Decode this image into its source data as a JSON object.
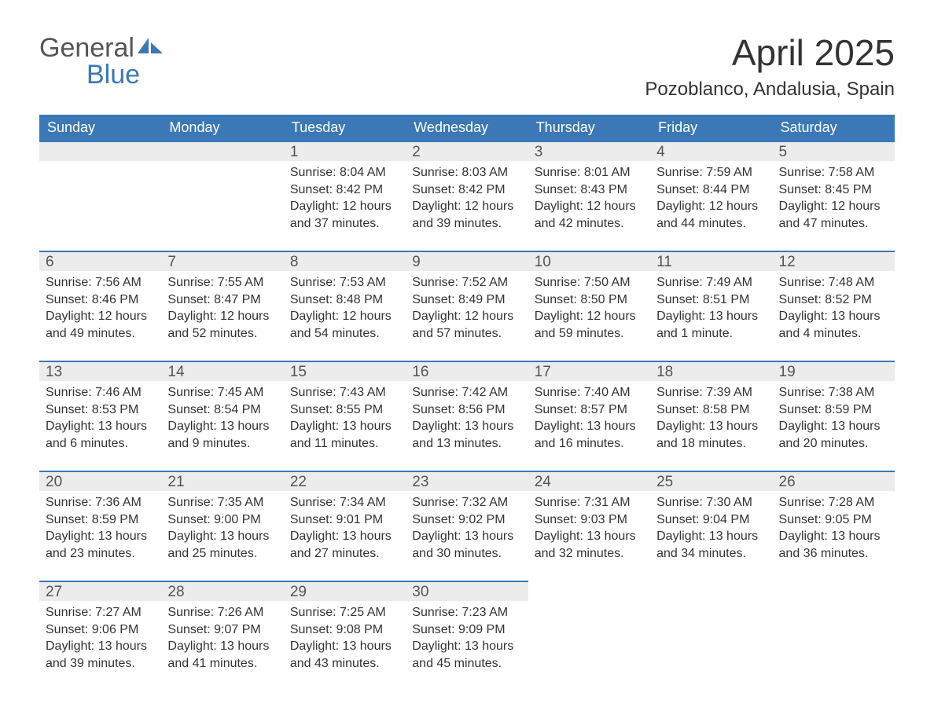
{
  "brand": {
    "top": "General",
    "bottom": "Blue",
    "top_color": "#555555",
    "bottom_color": "#3b78b5"
  },
  "title": "April 2025",
  "location": "Pozoblanco, Andalusia, Spain",
  "colors": {
    "header_bg": "#3b78b5",
    "header_text": "#ffffff",
    "daynum_bg": "#ececec",
    "row_divider": "#3b78b5",
    "body_text": "#333333",
    "page_bg": "#ffffff"
  },
  "weekdays": [
    "Sunday",
    "Monday",
    "Tuesday",
    "Wednesday",
    "Thursday",
    "Friday",
    "Saturday"
  ],
  "labels": {
    "sunrise": "Sunrise:",
    "sunset": "Sunset:",
    "daylight": "Daylight:"
  },
  "weeks": [
    [
      null,
      null,
      {
        "n": "1",
        "sunrise": "8:04 AM",
        "sunset": "8:42 PM",
        "daylight": "12 hours and 37 minutes."
      },
      {
        "n": "2",
        "sunrise": "8:03 AM",
        "sunset": "8:42 PM",
        "daylight": "12 hours and 39 minutes."
      },
      {
        "n": "3",
        "sunrise": "8:01 AM",
        "sunset": "8:43 PM",
        "daylight": "12 hours and 42 minutes."
      },
      {
        "n": "4",
        "sunrise": "7:59 AM",
        "sunset": "8:44 PM",
        "daylight": "12 hours and 44 minutes."
      },
      {
        "n": "5",
        "sunrise": "7:58 AM",
        "sunset": "8:45 PM",
        "daylight": "12 hours and 47 minutes."
      }
    ],
    [
      {
        "n": "6",
        "sunrise": "7:56 AM",
        "sunset": "8:46 PM",
        "daylight": "12 hours and 49 minutes."
      },
      {
        "n": "7",
        "sunrise": "7:55 AM",
        "sunset": "8:47 PM",
        "daylight": "12 hours and 52 minutes."
      },
      {
        "n": "8",
        "sunrise": "7:53 AM",
        "sunset": "8:48 PM",
        "daylight": "12 hours and 54 minutes."
      },
      {
        "n": "9",
        "sunrise": "7:52 AM",
        "sunset": "8:49 PM",
        "daylight": "12 hours and 57 minutes."
      },
      {
        "n": "10",
        "sunrise": "7:50 AM",
        "sunset": "8:50 PM",
        "daylight": "12 hours and 59 minutes."
      },
      {
        "n": "11",
        "sunrise": "7:49 AM",
        "sunset": "8:51 PM",
        "daylight": "13 hours and 1 minute."
      },
      {
        "n": "12",
        "sunrise": "7:48 AM",
        "sunset": "8:52 PM",
        "daylight": "13 hours and 4 minutes."
      }
    ],
    [
      {
        "n": "13",
        "sunrise": "7:46 AM",
        "sunset": "8:53 PM",
        "daylight": "13 hours and 6 minutes."
      },
      {
        "n": "14",
        "sunrise": "7:45 AM",
        "sunset": "8:54 PM",
        "daylight": "13 hours and 9 minutes."
      },
      {
        "n": "15",
        "sunrise": "7:43 AM",
        "sunset": "8:55 PM",
        "daylight": "13 hours and 11 minutes."
      },
      {
        "n": "16",
        "sunrise": "7:42 AM",
        "sunset": "8:56 PM",
        "daylight": "13 hours and 13 minutes."
      },
      {
        "n": "17",
        "sunrise": "7:40 AM",
        "sunset": "8:57 PM",
        "daylight": "13 hours and 16 minutes."
      },
      {
        "n": "18",
        "sunrise": "7:39 AM",
        "sunset": "8:58 PM",
        "daylight": "13 hours and 18 minutes."
      },
      {
        "n": "19",
        "sunrise": "7:38 AM",
        "sunset": "8:59 PM",
        "daylight": "13 hours and 20 minutes."
      }
    ],
    [
      {
        "n": "20",
        "sunrise": "7:36 AM",
        "sunset": "8:59 PM",
        "daylight": "13 hours and 23 minutes."
      },
      {
        "n": "21",
        "sunrise": "7:35 AM",
        "sunset": "9:00 PM",
        "daylight": "13 hours and 25 minutes."
      },
      {
        "n": "22",
        "sunrise": "7:34 AM",
        "sunset": "9:01 PM",
        "daylight": "13 hours and 27 minutes."
      },
      {
        "n": "23",
        "sunrise": "7:32 AM",
        "sunset": "9:02 PM",
        "daylight": "13 hours and 30 minutes."
      },
      {
        "n": "24",
        "sunrise": "7:31 AM",
        "sunset": "9:03 PM",
        "daylight": "13 hours and 32 minutes."
      },
      {
        "n": "25",
        "sunrise": "7:30 AM",
        "sunset": "9:04 PM",
        "daylight": "13 hours and 34 minutes."
      },
      {
        "n": "26",
        "sunrise": "7:28 AM",
        "sunset": "9:05 PM",
        "daylight": "13 hours and 36 minutes."
      }
    ],
    [
      {
        "n": "27",
        "sunrise": "7:27 AM",
        "sunset": "9:06 PM",
        "daylight": "13 hours and 39 minutes."
      },
      {
        "n": "28",
        "sunrise": "7:26 AM",
        "sunset": "9:07 PM",
        "daylight": "13 hours and 41 minutes."
      },
      {
        "n": "29",
        "sunrise": "7:25 AM",
        "sunset": "9:08 PM",
        "daylight": "13 hours and 43 minutes."
      },
      {
        "n": "30",
        "sunrise": "7:23 AM",
        "sunset": "9:09 PM",
        "daylight": "13 hours and 45 minutes."
      },
      null,
      null,
      null
    ]
  ]
}
